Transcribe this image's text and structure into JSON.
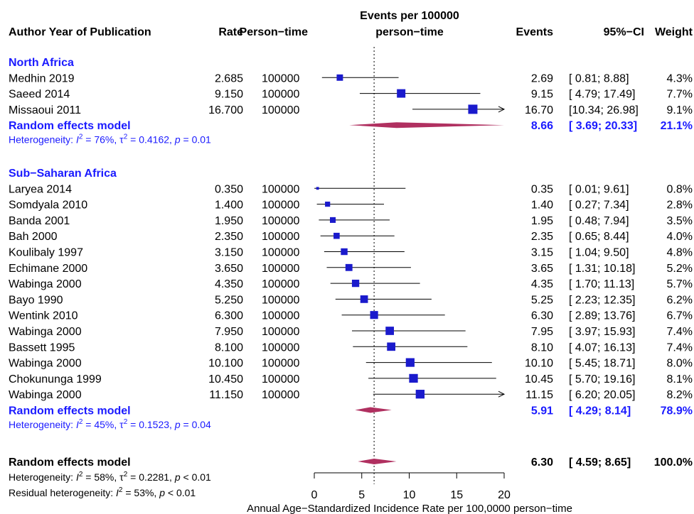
{
  "headers": {
    "study": "Author Year of Publication",
    "rate": "Rate",
    "person_time": "Person−time",
    "plot_title_line1": "Events per 100000",
    "plot_title_line2": "person−time",
    "events": "Events",
    "ci": "95%−CI",
    "weight": "Weight"
  },
  "colors": {
    "subgroup_text": "#1a1aff",
    "study_marker": "#1a1acc",
    "diamond": "#b03060",
    "text": "#000000"
  },
  "chart_data": {
    "type": "forest",
    "xlabel": "Annual Age−Standardized Incidence Rate per 100,0000 person−time",
    "xlim": [
      0,
      20
    ],
    "x_ticks": [
      "0",
      "5",
      "10",
      "15",
      "20"
    ],
    "reference_line": 6.3,
    "groups": [
      {
        "name": "North Africa",
        "studies": [
          {
            "label": "Medhin 2019",
            "rate": "2.685",
            "person_time": "100000",
            "events": "2.69",
            "ci_text": "[ 0.81;  8.88]",
            "weight": "4.3%",
            "est": 2.69,
            "lo": 0.81,
            "hi": 8.88,
            "arrow": false
          },
          {
            "label": "Saeed 2014",
            "rate": "9.150",
            "person_time": "100000",
            "events": "9.15",
            "ci_text": "[ 4.79; 17.49]",
            "weight": "7.7%",
            "est": 9.15,
            "lo": 4.79,
            "hi": 17.49,
            "arrow": false
          },
          {
            "label": "Missaoui 2011",
            "rate": "16.700",
            "person_time": "100000",
            "events": "16.70",
            "ci_text": "[10.34; 26.98]",
            "weight": "9.1%",
            "est": 16.7,
            "lo": 10.34,
            "hi": 26.98,
            "arrow": true
          }
        ],
        "model": {
          "label": "Random effects model",
          "events": "8.66",
          "ci_text": "[ 3.69; 20.33]",
          "weight": "21.1%",
          "est": 8.66,
          "lo": 3.69,
          "hi": 20.33
        },
        "heterogeneity": {
          "prefix": "Heterogeneity: ",
          "I": "I",
          "sup2": "2",
          "mid1": " = 76%, τ",
          "mid2": " = 0.4162, ",
          "p": "p",
          "end": " = 0.01"
        }
      },
      {
        "name": "Sub−Saharan Africa",
        "studies": [
          {
            "label": "Laryea 2014",
            "rate": "0.350",
            "person_time": "100000",
            "events": "0.35",
            "ci_text": "[ 0.01;  9.61]",
            "weight": "0.8%",
            "est": 0.35,
            "lo": 0.01,
            "hi": 9.61,
            "arrow": false
          },
          {
            "label": "Somdyala 2010",
            "rate": "1.400",
            "person_time": "100000",
            "events": "1.40",
            "ci_text": "[ 0.27;  7.34]",
            "weight": "2.8%",
            "est": 1.4,
            "lo": 0.27,
            "hi": 7.34,
            "arrow": false
          },
          {
            "label": "Banda 2001",
            "rate": "1.950",
            "person_time": "100000",
            "events": "1.95",
            "ci_text": "[ 0.48;  7.94]",
            "weight": "3.5%",
            "est": 1.95,
            "lo": 0.48,
            "hi": 7.94,
            "arrow": false
          },
          {
            "label": "Bah 2000",
            "rate": "2.350",
            "person_time": "100000",
            "events": "2.35",
            "ci_text": "[ 0.65;  8.44]",
            "weight": "4.0%",
            "est": 2.35,
            "lo": 0.65,
            "hi": 8.44,
            "arrow": false
          },
          {
            "label": "Koulibaly  1997",
            "rate": "3.150",
            "person_time": "100000",
            "events": "3.15",
            "ci_text": "[ 1.04;  9.50]",
            "weight": "4.8%",
            "est": 3.15,
            "lo": 1.04,
            "hi": 9.5,
            "arrow": false
          },
          {
            "label": "Echimane  2000",
            "rate": "3.650",
            "person_time": "100000",
            "events": "3.65",
            "ci_text": "[ 1.31; 10.18]",
            "weight": "5.2%",
            "est": 3.65,
            "lo": 1.31,
            "hi": 10.18,
            "arrow": false
          },
          {
            "label": "Wabinga 2000",
            "rate": "4.350",
            "person_time": "100000",
            "events": "4.35",
            "ci_text": "[ 1.70; 11.13]",
            "weight": "5.7%",
            "est": 4.35,
            "lo": 1.7,
            "hi": 11.13,
            "arrow": false
          },
          {
            "label": "Bayo 1990",
            "rate": "5.250",
            "person_time": "100000",
            "events": "5.25",
            "ci_text": "[ 2.23; 12.35]",
            "weight": "6.2%",
            "est": 5.25,
            "lo": 2.23,
            "hi": 12.35,
            "arrow": false
          },
          {
            "label": "Wentink 2010",
            "rate": "6.300",
            "person_time": "100000",
            "events": "6.30",
            "ci_text": "[ 2.89; 13.76]",
            "weight": "6.7%",
            "est": 6.3,
            "lo": 2.89,
            "hi": 13.76,
            "arrow": false
          },
          {
            "label": "Wabinga 2000",
            "rate": "7.950",
            "person_time": "100000",
            "events": "7.95",
            "ci_text": "[ 3.97; 15.93]",
            "weight": "7.4%",
            "est": 7.95,
            "lo": 3.97,
            "hi": 15.93,
            "arrow": false
          },
          {
            "label": "Bassett 1995",
            "rate": "8.100",
            "person_time": "100000",
            "events": "8.10",
            "ci_text": "[ 4.07; 16.13]",
            "weight": "7.4%",
            "est": 8.1,
            "lo": 4.07,
            "hi": 16.13,
            "arrow": false
          },
          {
            "label": "Wabinga 2000",
            "rate": "10.100",
            "person_time": "100000",
            "events": "10.10",
            "ci_text": "[ 5.45; 18.71]",
            "weight": "8.0%",
            "est": 10.1,
            "lo": 5.45,
            "hi": 18.71,
            "arrow": false
          },
          {
            "label": "Chokununga 1999",
            "rate": "10.450",
            "person_time": "100000",
            "events": "10.45",
            "ci_text": "[ 5.70; 19.16]",
            "weight": "8.1%",
            "est": 10.45,
            "lo": 5.7,
            "hi": 19.16,
            "arrow": false
          },
          {
            "label": "Wabinga 2000",
            "rate": "11.150",
            "person_time": "100000",
            "events": "11.15",
            "ci_text": "[ 6.20; 20.05]",
            "weight": "8.2%",
            "est": 11.15,
            "lo": 6.2,
            "hi": 20.05,
            "arrow": true
          }
        ],
        "model": {
          "label": "Random effects model",
          "events": "5.91",
          "ci_text": "[ 4.29;  8.14]",
          "weight": "78.9%",
          "est": 5.91,
          "lo": 4.29,
          "hi": 8.14
        },
        "heterogeneity": {
          "prefix": "Heterogeneity: ",
          "I": "I",
          "sup2": "2",
          "mid1": " = 45%, τ",
          "mid2": " = 0.1523, ",
          "p": "p",
          "end": " = 0.04"
        }
      }
    ],
    "overall": {
      "model": {
        "label": "Random effects model",
        "events": "6.30",
        "ci_text": "[ 4.59;  8.65]",
        "weight": "100.0%",
        "est": 6.3,
        "lo": 4.59,
        "hi": 8.65
      },
      "heterogeneity": {
        "prefix": "Heterogeneity: ",
        "I": "I",
        "sup2": "2",
        "mid1": " = 58%, τ",
        "mid2": " = 0.2281, ",
        "p": "p",
        "end": " < 0.01"
      },
      "residual": {
        "prefix": "Residual heterogeneity: ",
        "I": "I",
        "sup2": "2",
        "mid1": " = 53%, ",
        "p": "p",
        "end": " < 0.01"
      }
    }
  }
}
